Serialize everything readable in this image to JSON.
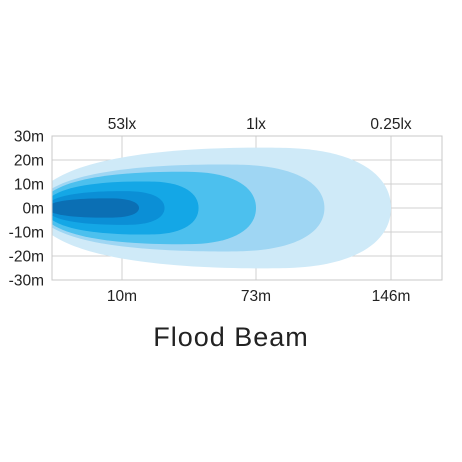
{
  "chart_data": {
    "type": "area",
    "title": "Flood Beam",
    "top_labels": [
      "53lx",
      "1lx",
      "0.25lx"
    ],
    "x_tick_labels": [
      "10m",
      "73m",
      "146m"
    ],
    "y_ticks": [
      30,
      20,
      10,
      0,
      -10,
      -20,
      -30
    ],
    "y_tick_labels": [
      "30m",
      "20m",
      "10m",
      "0m",
      "-10m",
      "-20m",
      "-30m"
    ],
    "ylim": [
      -30,
      30
    ],
    "grid": true,
    "beam_zones": [
      {
        "reach": 146,
        "half_width": 25,
        "color": "#cfeaf8"
      },
      {
        "reach": 110,
        "half_width": 18,
        "color": "#9fd6f3"
      },
      {
        "reach": 73,
        "half_width": 15,
        "color": "#4cc0ee"
      },
      {
        "reach": 46,
        "half_width": 11,
        "color": "#14a7e6"
      },
      {
        "reach": 30,
        "half_width": 7,
        "color": "#0b8fd6"
      },
      {
        "reach": 18,
        "half_width": 4,
        "color": "#0b6fb4"
      }
    ]
  }
}
